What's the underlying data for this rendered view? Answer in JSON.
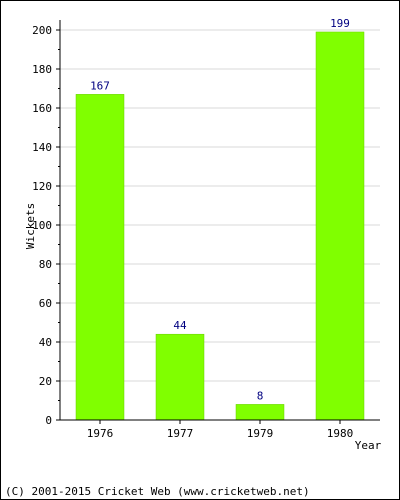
{
  "chart_data": {
    "type": "bar",
    "categories": [
      "1976",
      "1977",
      "1979",
      "1980"
    ],
    "values": [
      167,
      44,
      8,
      199
    ],
    "data_labels": [
      "167",
      "44",
      "8",
      "199"
    ],
    "title": "",
    "xlabel": "Year",
    "ylabel": "Wickets",
    "ylim": [
      0,
      200
    ],
    "yticks": [
      "0",
      "20",
      "40",
      "60",
      "80",
      "100",
      "120",
      "140",
      "160",
      "180",
      "200"
    ],
    "grid": true,
    "legend": "none",
    "colors": {
      "bar": "#80ff00",
      "bar_edge": "#66cc00",
      "data_label": "#000080",
      "grid": "#d8d8d8",
      "axis": "#000000"
    }
  },
  "footer": {
    "copyright": "(C) 2001-2015 Cricket Web (www.cricketweb.net)"
  }
}
